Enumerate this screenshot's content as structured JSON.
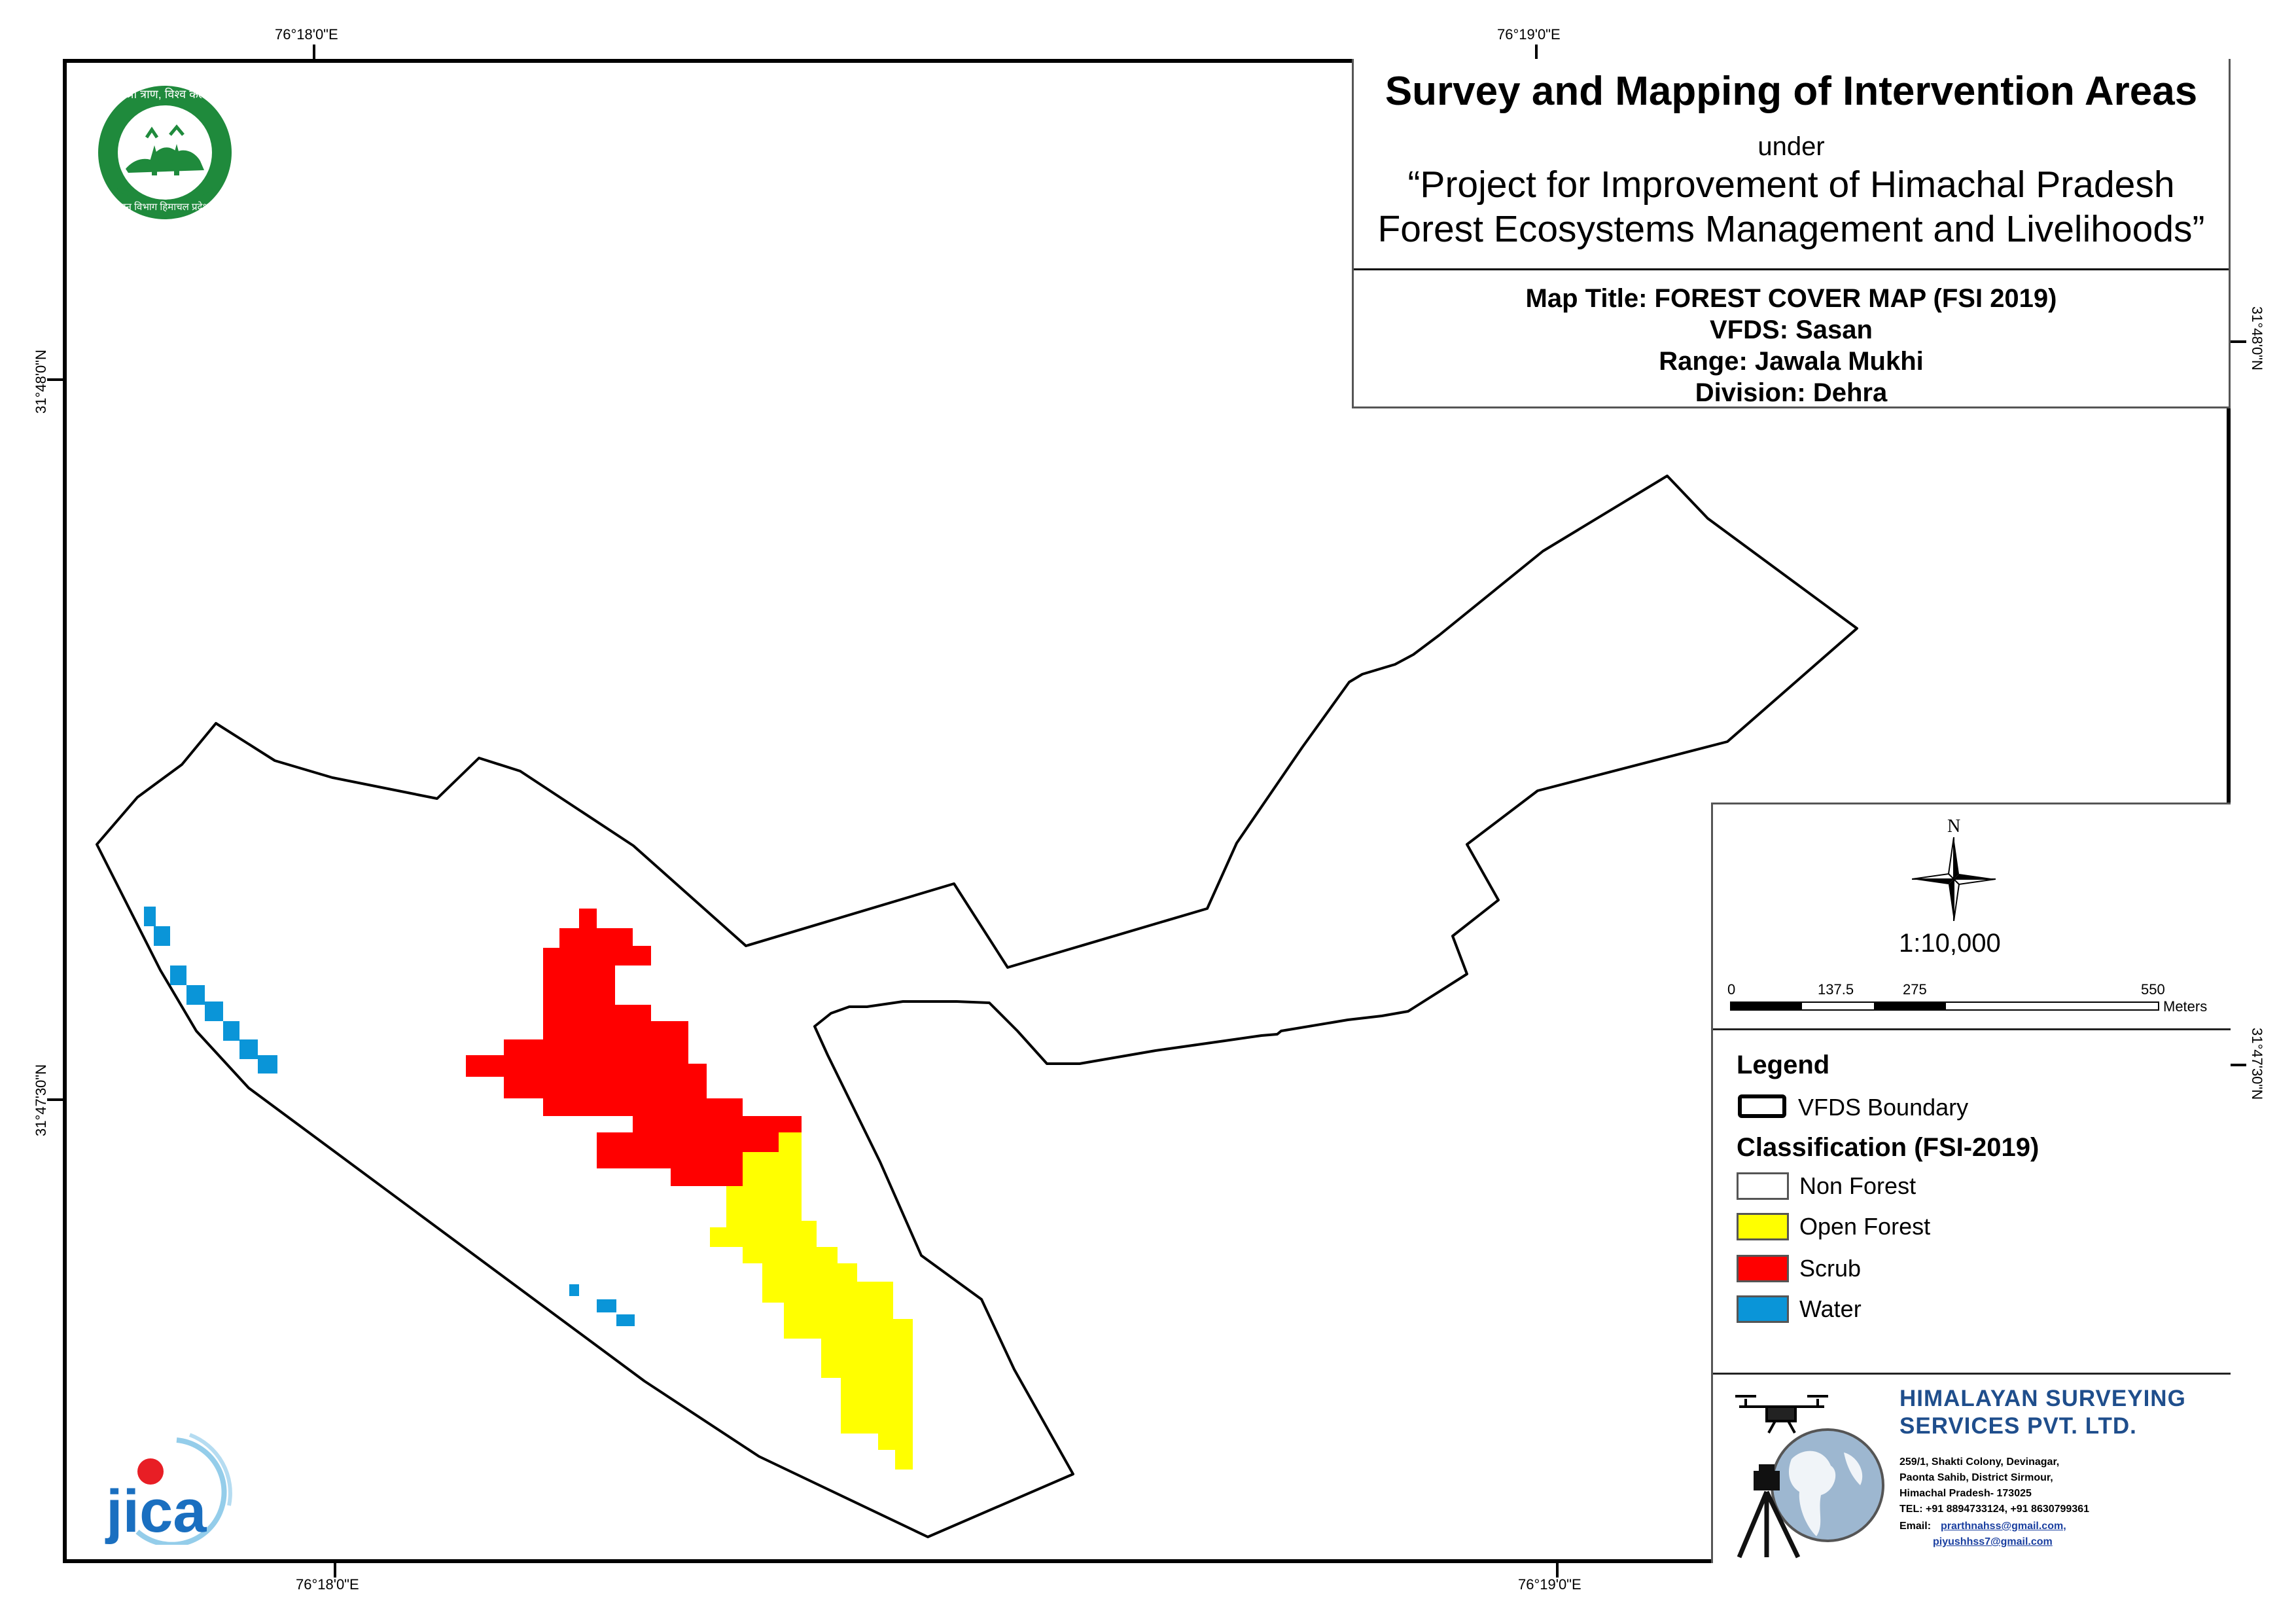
{
  "title": {
    "main": "Survey and Mapping of Intervention Areas",
    "under": "under",
    "project_line1": "“Project for Improvement of Himachal Pradesh",
    "project_line2": "Forest Ecosystems Management and Livelihoods”",
    "map_title": "Map Title: FOREST COVER MAP (FSI 2019)",
    "vfds": "VFDS: Sasan",
    "range": "Range: Jawala Mukhi",
    "division": "Division: Dehra"
  },
  "coordinates": {
    "top_left": "76°18'0\"E",
    "top_right": "76°19'0\"E",
    "bottom_left": "76°18'0\"E",
    "bottom_right": "76°19'0\"E",
    "left_upper": "31°48'0\"N",
    "left_lower": "31°47'30\"N",
    "right_upper": "31°48'0\"N",
    "right_lower": "31°47'30\"N"
  },
  "north_arrow": {
    "label": "N",
    "icon": "compass-rose-icon"
  },
  "scale": {
    "ratio": "1:10,000",
    "ticks": [
      "0",
      "137.5",
      "275",
      "550"
    ],
    "unit": "Meters"
  },
  "legend": {
    "title": "Legend",
    "boundary_label": "VFDS Boundary",
    "classification_title": "Classification (FSI-2019)",
    "classes": [
      {
        "label": "Non Forest",
        "color": "#ffffff"
      },
      {
        "label": "Open Forest",
        "color": "#ffff00"
      },
      {
        "label": "Scrub",
        "color": "#ff0000"
      },
      {
        "label": "Water",
        "color": "#0a95d8"
      }
    ]
  },
  "company": {
    "name_line1": "HIMALAYAN SURVEYING",
    "name_line2": "SERVICES PVT. LTD.",
    "address_lines": [
      "259/1, Shakti Colony, Devinagar,",
      "Paonta Sahib, District Sirmour,",
      "Himachal Pradesh- 173025",
      "TEL: +91 8894733124, +91 8630799361"
    ],
    "email_label": "Email:",
    "email1": "prarthnahss@gmail.com,",
    "email2": "piyushhss7@gmail.com",
    "logo_icon": "surveyor-globe-drone-icon"
  },
  "logos": {
    "forest_dept_seal": "hp-forest-department-seal-icon",
    "seal_text_top": "वन श्री त्राण, विश्व कल्याण",
    "seal_text_bottom": "वन विभाग हिमाचल प्रदेश",
    "jica_text": "JICA",
    "jica_icon": "jica-logo-icon"
  },
  "map_colors": {
    "boundary": "#000000",
    "open_forest": "#ffff00",
    "scrub": "#ff0000",
    "water": "#0a95d8"
  }
}
